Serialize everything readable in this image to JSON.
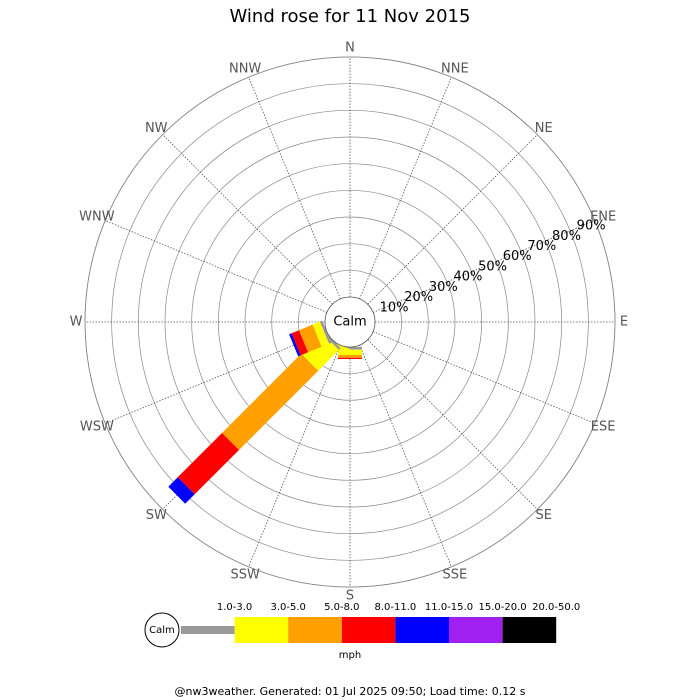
{
  "chart_data": {
    "type": "polar_stacked_bar",
    "title": "Wind rose for 11 Nov 2015",
    "categories": [
      "N",
      "NNE",
      "NE",
      "ENE",
      "E",
      "ESE",
      "SE",
      "SSE",
      "S",
      "SSW",
      "SW",
      "WSW",
      "W",
      "WNW",
      "NW",
      "NNW"
    ],
    "calm_label": "Calm",
    "rlim": [
      0,
      90
    ],
    "rticks": [
      {
        "value": 10,
        "label": "10%"
      },
      {
        "value": 20,
        "label": "20%"
      },
      {
        "value": 30,
        "label": "30%"
      },
      {
        "value": 40,
        "label": "40%"
      },
      {
        "value": 50,
        "label": "50%"
      },
      {
        "value": 60,
        "label": "60%"
      },
      {
        "value": 70,
        "label": "70%"
      },
      {
        "value": 80,
        "label": "80%"
      },
      {
        "value": 90,
        "label": "90%"
      }
    ],
    "units": "mph",
    "series": [
      {
        "name": "1.0-3.0",
        "color": "#999999",
        "values": [
          0,
          0,
          0,
          0,
          0,
          0,
          0,
          0,
          1,
          0,
          1,
          1,
          0,
          0,
          0,
          0
        ]
      },
      {
        "name": "3.0-5.0",
        "color": "#ffff00",
        "values": [
          0,
          0,
          0,
          0,
          0,
          0,
          0,
          0,
          2,
          2,
          11,
          3,
          0,
          0,
          0,
          0
        ]
      },
      {
        "name": "5.0-8.0",
        "color": "#ffa000",
        "values": [
          0,
          0,
          0,
          0,
          0,
          0,
          0,
          0,
          1,
          0,
          42,
          5.5,
          0,
          0,
          0,
          0
        ]
      },
      {
        "name": "8.0-11.0",
        "color": "#ff0000",
        "values": [
          0,
          0,
          0,
          0,
          0,
          0,
          0,
          0,
          0.5,
          0,
          23.5,
          3,
          0,
          0,
          0,
          0
        ]
      },
      {
        "name": "11.0-15.0",
        "color": "#0000ff",
        "values": [
          0,
          0,
          0,
          0,
          0,
          0,
          0,
          0,
          0,
          0,
          5,
          1,
          0,
          0,
          0,
          0
        ]
      },
      {
        "name": "15.0-20.0",
        "color": "#a020f0",
        "values": [
          0,
          0,
          0,
          0,
          0,
          0,
          0,
          0,
          0,
          0,
          0,
          0,
          0,
          0,
          0,
          0
        ]
      },
      {
        "name": "20.0-50.0",
        "color": "#000000",
        "values": [
          0,
          0,
          0,
          0,
          0,
          0,
          0,
          0,
          0,
          0,
          0,
          0,
          0,
          0,
          0,
          0
        ]
      }
    ],
    "footer": "@nw3weather. Generated: 01 Jul 2025 09:50; Load time: 0.12 s"
  }
}
